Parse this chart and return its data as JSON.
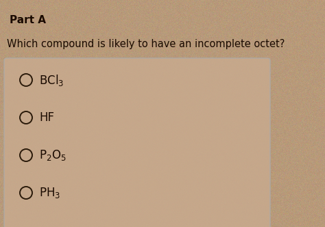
{
  "title": "Part A",
  "question": "Which compound is likely to have an incomplete octet?",
  "options": [
    "BCl$_3$",
    "HF",
    "P$_2$O$_5$",
    "PH$_3$"
  ],
  "bg_color": "#b89a7a",
  "box_color": "#c8aa8e",
  "box_edge_color": "#aaaaaa",
  "title_color": "#1a0a00",
  "text_color": "#1a0a00",
  "title_fontsize": 11,
  "question_fontsize": 10.5,
  "option_fontsize": 12,
  "circle_color": "#2a1a0a"
}
